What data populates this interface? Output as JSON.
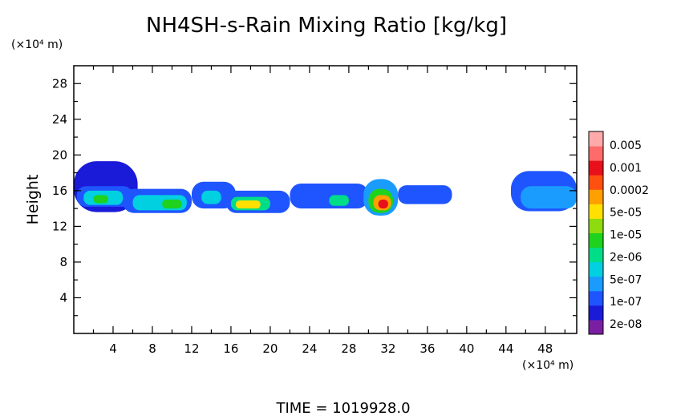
{
  "chart_data": {
    "type": "heatmap",
    "title": "NH4SH-s-Rain Mixing Ratio [kg/kg]",
    "xlabel": "",
    "ylabel": "Height",
    "x_unit": "(×10⁴ m)",
    "y_unit": "(×10⁴ m)",
    "x_ticks": [
      4,
      8,
      12,
      16,
      20,
      24,
      28,
      32,
      36,
      40,
      44,
      48
    ],
    "y_ticks": [
      4,
      8,
      12,
      16,
      20,
      24,
      28
    ],
    "xlim": [
      0,
      51.2
    ],
    "ylim": [
      0,
      30
    ],
    "footer": "TIME =  1019928.0",
    "colorbar": {
      "labels": [
        "0.005",
        "0.001",
        "0.0002",
        "5e-05",
        "1e-05",
        "2e-06",
        "5e-07",
        "1e-07",
        "2e-08"
      ],
      "levels_colors": [
        "#7b1fa2",
        "#1a1ad9",
        "#1f55ff",
        "#1a9cff",
        "#00d0e0",
        "#00dd88",
        "#1ed21e",
        "#8edc10",
        "#ffe000",
        "#ffa000",
        "#ff5010",
        "#e8101a",
        "#ff6a6a",
        "#ffaaaa"
      ]
    },
    "regions": [
      {
        "x": [
          0,
          6.5
        ],
        "y": [
          13.6,
          19.3
        ],
        "level": 1
      },
      {
        "x": [
          0.3,
          6
        ],
        "y": [
          14.2,
          16.5
        ],
        "level": 2
      },
      {
        "x": [
          1,
          5
        ],
        "y": [
          14.4,
          16
        ],
        "level": 4
      },
      {
        "x": [
          2,
          3.5
        ],
        "y": [
          14.6,
          15.5
        ],
        "level": 6
      },
      {
        "x": [
          5,
          12
        ],
        "y": [
          13.5,
          16.2
        ],
        "level": 2
      },
      {
        "x": [
          6,
          11.5
        ],
        "y": [
          13.8,
          15.5
        ],
        "level": 4
      },
      {
        "x": [
          9,
          11
        ],
        "y": [
          14,
          15
        ],
        "level": 6
      },
      {
        "x": [
          12,
          16.5
        ],
        "y": [
          14,
          17
        ],
        "level": 2
      },
      {
        "x": [
          13,
          15
        ],
        "y": [
          14.5,
          16
        ],
        "level": 4
      },
      {
        "x": [
          15.5,
          22
        ],
        "y": [
          13.5,
          16
        ],
        "level": 2
      },
      {
        "x": [
          16,
          20
        ],
        "y": [
          13.8,
          15.3
        ],
        "level": 5
      },
      {
        "x": [
          16.5,
          19
        ],
        "y": [
          14,
          14.9
        ],
        "level": 8
      },
      {
        "x": [
          22,
          30
        ],
        "y": [
          14,
          16.8
        ],
        "level": 2
      },
      {
        "x": [
          26,
          28
        ],
        "y": [
          14.3,
          15.5
        ],
        "level": 5
      },
      {
        "x": [
          29.5,
          33
        ],
        "y": [
          13.2,
          17.3
        ],
        "level": 3
      },
      {
        "x": [
          30,
          32.5
        ],
        "y": [
          13.5,
          16.2
        ],
        "level": 6
      },
      {
        "x": [
          30.5,
          32.3
        ],
        "y": [
          13.8,
          15.5
        ],
        "level": 9
      },
      {
        "x": [
          31,
          32
        ],
        "y": [
          14,
          15
        ],
        "level": 11
      },
      {
        "x": [
          33,
          38.5
        ],
        "y": [
          14.5,
          16.6
        ],
        "level": 2
      },
      {
        "x": [
          44.5,
          51.2
        ],
        "y": [
          13.7,
          18.2
        ],
        "level": 2
      },
      {
        "x": [
          45.5,
          51.2
        ],
        "y": [
          14,
          16.5
        ],
        "level": 3
      }
    ]
  }
}
